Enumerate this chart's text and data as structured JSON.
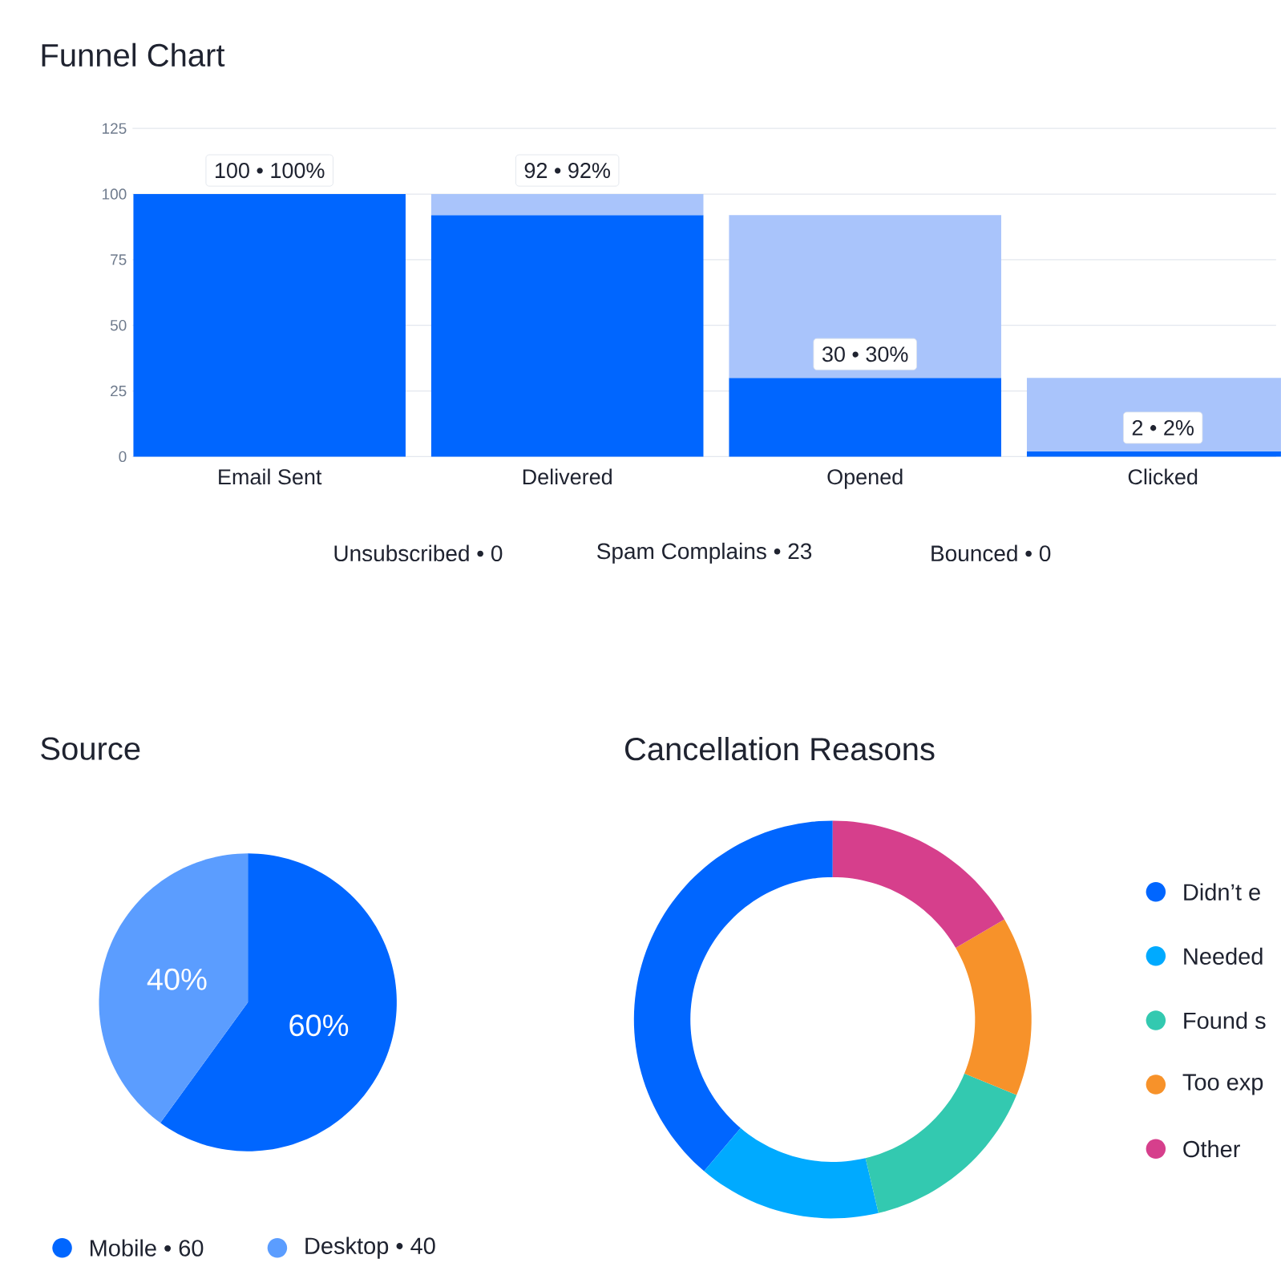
{
  "chart_data": [
    {
      "type": "bar",
      "title": "Funnel Chart",
      "categories": [
        "Email Sent",
        "Delivered",
        "Opened",
        "Clicked"
      ],
      "series": [
        {
          "color": "#0066ff",
          "values": [
            100,
            92,
            30,
            2
          ],
          "value_labels": [
            "100 • 100%",
            "92 • 92%",
            "30 • 30%",
            "2 • 2%"
          ]
        },
        {
          "color": "#a9c4fb",
          "values": [
            null,
            8,
            62,
            28
          ]
        }
      ],
      "stacked": true,
      "ylim": [
        0,
        125
      ],
      "yticks": [
        0,
        25,
        50,
        75,
        100,
        125
      ],
      "grid": "y",
      "annotations": [
        "Unsubscribed • 0",
        "Spam Complains • 23",
        "Bounced • 0"
      ]
    },
    {
      "type": "pie",
      "title": "Source",
      "categories": [
        "Mobile • 60",
        "Desktop • 40"
      ],
      "values": [
        60,
        40
      ],
      "colors": [
        "#0066ff",
        "#5b9dff"
      ],
      "value_labels": [
        "60%",
        "40%"
      ],
      "legend": "bottom"
    },
    {
      "type": "donut",
      "title": "Cancellation Reasons",
      "categories": [
        "Didn’t e",
        "Needed",
        "Found s",
        "Too exp",
        "Other"
      ],
      "values": [
        38.8,
        14.9,
        15.1,
        14.6,
        16.6
      ],
      "colors": [
        "#0066ff",
        "#00aaff",
        "#33c9b0",
        "#f7922a",
        "#d63f8c"
      ],
      "legend": "right"
    }
  ]
}
